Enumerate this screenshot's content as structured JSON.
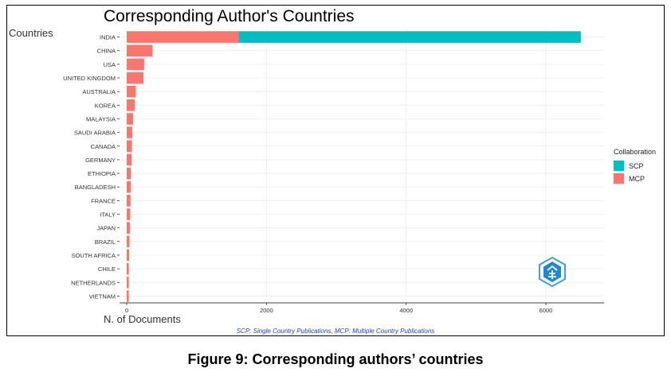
{
  "chart_data": {
    "type": "bar",
    "orientation": "horizontal",
    "stacked": true,
    "title": "Corresponding Author's Countries",
    "ylabel": "Countries",
    "xlabel": "N. of Documents",
    "xlim": [
      0,
      6800
    ],
    "xticks": [
      0,
      2000,
      4000,
      6000
    ],
    "grid": true,
    "legend_position": "right",
    "legend_title": "Collaboration",
    "caption": "SCP: Single Country Publications, MCP: Multiple Country Publications",
    "categories": [
      "INDIA",
      "CHINA",
      "USA",
      "UNITED KINGDOM",
      "AUSTRALIA",
      "KOREA",
      "MALAYSIA",
      "SAUDI ARABIA",
      "CANADA",
      "GERMANY",
      "ETHIOPIA",
      "BANGLADESH",
      "FRANCE",
      "ITALY",
      "JAPAN",
      "BRAZIL",
      "SOUTH AFRICA",
      "CHILE",
      "NETHERLANDS",
      "VIETNAM"
    ],
    "series": [
      {
        "name": "MCP",
        "color": "#F8766D",
        "values": [
          1600,
          370,
          250,
          240,
          130,
          115,
          90,
          80,
          75,
          70,
          60,
          60,
          55,
          50,
          45,
          40,
          35,
          30,
          30,
          30
        ]
      },
      {
        "name": "SCP",
        "color": "#00BFC4",
        "values": [
          4900,
          0,
          0,
          0,
          0,
          0,
          0,
          0,
          0,
          0,
          0,
          0,
          0,
          0,
          0,
          0,
          0,
          0,
          0,
          0
        ]
      }
    ],
    "legend_order": [
      "SCP",
      "MCP"
    ]
  },
  "figure_caption": "Figure 9: Corresponding authors’ countries"
}
